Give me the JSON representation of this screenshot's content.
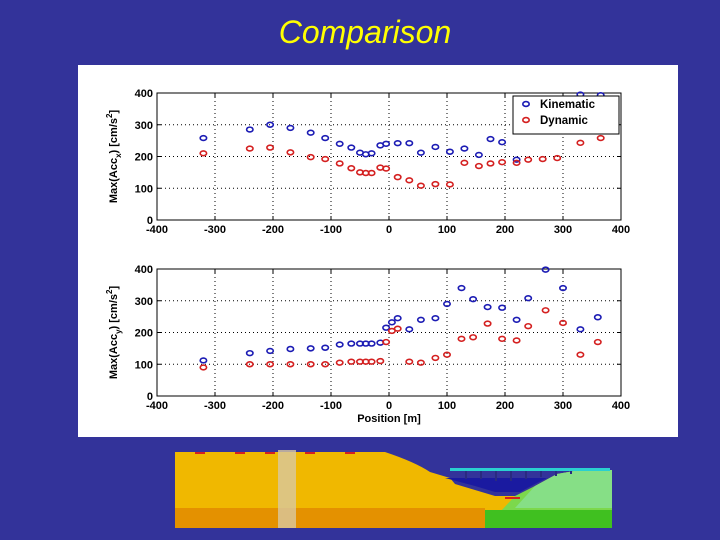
{
  "slide": {
    "title": "Comparison"
  },
  "legend": {
    "position": "top-right"
  },
  "colors": {
    "kinematic": "#1c1cb4",
    "dynamic": "#d42020",
    "background": "#33339a",
    "title": "#ffff00"
  },
  "chart_data": [
    {
      "type": "scatter",
      "ylabel": "Max(Acc_x) [cm/s^2]",
      "ylabel_parts": [
        "Max(Acc",
        "x",
        ") [cm/s",
        "2",
        "]"
      ],
      "xlabel": "",
      "xlim": [
        -400,
        400
      ],
      "ylim": [
        0,
        400
      ],
      "xticks": [
        "-400",
        "-300",
        "-200",
        "-100",
        "0",
        "100",
        "200",
        "300",
        "400"
      ],
      "yticks": [
        "0",
        "100",
        "200",
        "300",
        "400"
      ],
      "grid": "dotted",
      "series": [
        {
          "name": "Kinematic",
          "color": "#1c1cb4",
          "points": [
            [
              -320,
              258
            ],
            [
              -240,
              285
            ],
            [
              -205,
              300
            ],
            [
              -170,
              290
            ],
            [
              -135,
              275
            ],
            [
              -110,
              258
            ],
            [
              -85,
              240
            ],
            [
              -65,
              228
            ],
            [
              -50,
              212
            ],
            [
              -40,
              207
            ],
            [
              -30,
              210
            ],
            [
              -15,
              235
            ],
            [
              -5,
              240
            ],
            [
              15,
              242
            ],
            [
              35,
              242
            ],
            [
              55,
              212
            ],
            [
              80,
              230
            ],
            [
              105,
              215
            ],
            [
              130,
              225
            ],
            [
              155,
              205
            ],
            [
              175,
              255
            ],
            [
              195,
              245
            ],
            [
              220,
              190
            ],
            [
              330,
              395
            ],
            [
              365,
              393
            ]
          ]
        },
        {
          "name": "Dynamic",
          "color": "#d42020",
          "points": [
            [
              -320,
              210
            ],
            [
              -240,
              225
            ],
            [
              -205,
              228
            ],
            [
              -170,
              213
            ],
            [
              -135,
              198
            ],
            [
              -110,
              192
            ],
            [
              -85,
              178
            ],
            [
              -65,
              163
            ],
            [
              -50,
              150
            ],
            [
              -40,
              148
            ],
            [
              -30,
              148
            ],
            [
              -15,
              165
            ],
            [
              -5,
              162
            ],
            [
              15,
              135
            ],
            [
              35,
              125
            ],
            [
              55,
              108
            ],
            [
              80,
              113
            ],
            [
              105,
              112
            ],
            [
              130,
              180
            ],
            [
              155,
              170
            ],
            [
              175,
              178
            ],
            [
              195,
              182
            ],
            [
              220,
              180
            ],
            [
              240,
              190
            ],
            [
              265,
              192
            ],
            [
              290,
              195
            ],
            [
              330,
              243
            ],
            [
              365,
              258
            ]
          ]
        }
      ]
    },
    {
      "type": "scatter",
      "ylabel": "Max(Acc_y) [cm/s^2]",
      "ylabel_parts": [
        "Max(Acc",
        "y",
        ") [cm/s",
        "2",
        "]"
      ],
      "xlabel": "Position [m]",
      "xlim": [
        -400,
        400
      ],
      "ylim": [
        0,
        400
      ],
      "xticks": [
        "-400",
        "-300",
        "-200",
        "-100",
        "0",
        "100",
        "200",
        "300",
        "400"
      ],
      "yticks": [
        "0",
        "100",
        "200",
        "300",
        "400"
      ],
      "grid": "dotted",
      "series": [
        {
          "name": "Kinematic",
          "color": "#1c1cb4",
          "points": [
            [
              -320,
              112
            ],
            [
              -240,
              135
            ],
            [
              -205,
              142
            ],
            [
              -170,
              148
            ],
            [
              -135,
              150
            ],
            [
              -110,
              152
            ],
            [
              -85,
              162
            ],
            [
              -65,
              165
            ],
            [
              -50,
              165
            ],
            [
              -40,
              165
            ],
            [
              -30,
              165
            ],
            [
              -15,
              168
            ],
            [
              -5,
              215
            ],
            [
              5,
              232
            ],
            [
              15,
              245
            ],
            [
              35,
              210
            ],
            [
              55,
              240
            ],
            [
              80,
              245
            ],
            [
              100,
              290
            ],
            [
              125,
              340
            ],
            [
              145,
              305
            ],
            [
              170,
              280
            ],
            [
              195,
              278
            ],
            [
              220,
              240
            ],
            [
              240,
              308
            ],
            [
              270,
              398
            ],
            [
              300,
              340
            ],
            [
              330,
              210
            ],
            [
              360,
              248
            ]
          ]
        },
        {
          "name": "Dynamic",
          "color": "#d42020",
          "points": [
            [
              -320,
              90
            ],
            [
              -240,
              100
            ],
            [
              -205,
              100
            ],
            [
              -170,
              100
            ],
            [
              -135,
              100
            ],
            [
              -110,
              100
            ],
            [
              -85,
              105
            ],
            [
              -65,
              108
            ],
            [
              -50,
              108
            ],
            [
              -40,
              108
            ],
            [
              -30,
              108
            ],
            [
              -15,
              110
            ],
            [
              -5,
              170
            ],
            [
              5,
              205
            ],
            [
              15,
              212
            ],
            [
              35,
              108
            ],
            [
              55,
              105
            ],
            [
              80,
              120
            ],
            [
              100,
              130
            ],
            [
              125,
              180
            ],
            [
              145,
              185
            ],
            [
              170,
              228
            ],
            [
              195,
              180
            ],
            [
              220,
              175
            ],
            [
              240,
              220
            ],
            [
              270,
              270
            ],
            [
              300,
              230
            ],
            [
              330,
              130
            ],
            [
              360,
              170
            ]
          ]
        }
      ]
    }
  ]
}
